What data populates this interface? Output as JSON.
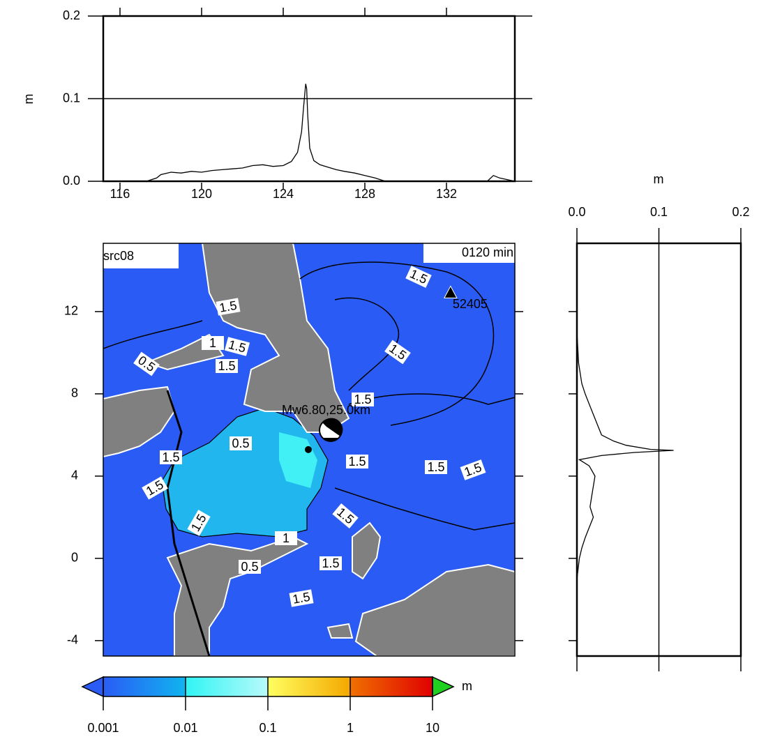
{
  "chart_data": [
    {
      "type": "line",
      "ylabel": "m",
      "color": "#000000",
      "grid": true,
      "x": [
        115.18,
        117.3,
        117.8,
        118.0,
        118.5,
        119.0,
        119.5,
        120.0,
        120.5,
        121.0,
        121.5,
        122.0,
        122.5,
        123.0,
        123.5,
        124.0,
        124.4,
        124.7,
        124.9,
        125.0,
        125.1,
        125.15,
        125.2,
        125.3,
        125.5,
        125.8,
        126.2,
        126.6,
        127.0,
        127.5,
        128.0,
        128.5,
        129.0,
        134.0,
        134.3,
        134.6,
        135.35
      ],
      "values": [
        0,
        0,
        0.004,
        0.008,
        0.011,
        0.01,
        0.012,
        0.011,
        0.013,
        0.014,
        0.015,
        0.016,
        0.019,
        0.02,
        0.018,
        0.019,
        0.024,
        0.035,
        0.06,
        0.09,
        0.118,
        0.112,
        0.08,
        0.04,
        0.025,
        0.02,
        0.017,
        0.014,
        0.012,
        0.01,
        0.007,
        0.004,
        0,
        0,
        0.007,
        0.004,
        0
      ],
      "xlim": [
        115.18,
        135.35
      ],
      "xticks": [
        116,
        120,
        124,
        128,
        132
      ],
      "ylim": [
        0,
        0.2
      ],
      "yticks": [
        {
          "value": 0,
          "label": "0.0"
        },
        0.1,
        0.2
      ]
    },
    {
      "type": "vline",
      "xlabel": "m",
      "color": "#000000",
      "grid": true,
      "lat": [
        15.32,
        11.0,
        9.5,
        8.5,
        8.0,
        7.5,
        7.0,
        6.5,
        6.0,
        5.7,
        5.5,
        5.3,
        5.25,
        5.15,
        5.0,
        4.8,
        4.5,
        4.0,
        3.5,
        3.0,
        2.5,
        2.0,
        1.5,
        1.0,
        0.5,
        0.0,
        -1.0,
        -4.75
      ],
      "values": [
        0,
        0,
        0.002,
        0.006,
        0.01,
        0.015,
        0.02,
        0.025,
        0.03,
        0.045,
        0.06,
        0.09,
        0.118,
        0.07,
        0.03,
        0.003,
        0.015,
        0.022,
        0.02,
        0.018,
        0.016,
        0.02,
        0.015,
        0.01,
        0.006,
        0.003,
        0,
        0
      ],
      "xlim": [
        0,
        0.2
      ],
      "xticks": [
        {
          "value": 0,
          "label": "0.0"
        },
        0.1,
        0.2
      ],
      "ylim": [
        -4.75,
        15.32
      ]
    },
    {
      "type": "map",
      "title": "src08",
      "time_label": "0120 min",
      "source_label": "Mw6.80,25.0km",
      "xlim": [
        115.18,
        135.35
      ],
      "ylim": [
        -4.75,
        15.32
      ],
      "yticks": [
        12,
        8,
        4,
        0,
        -4
      ],
      "epicenter": {
        "lon": 125.23,
        "lat": 5.29
      },
      "station": {
        "label": "52405",
        "lon": 132.2,
        "lat": 12.9
      },
      "contour_labels": [
        "1.5",
        "1.5",
        "0.5",
        "1",
        "1.5",
        "1.5",
        "1.5",
        "1.5",
        "0.5",
        "1.5",
        "1.5",
        "1.5",
        "1.5",
        "1.5",
        "1.5",
        "1.5",
        "1",
        "1.5",
        "0.5",
        "1.5"
      ]
    },
    {
      "type": "colorbar",
      "scale": "log",
      "unit": "m",
      "xlim": [
        0.001,
        10
      ],
      "xticks": [
        0.001,
        0.01,
        0.1,
        1,
        10
      ],
      "colors": [
        [
          "#2a5cf5",
          "#10b4f0"
        ],
        [
          "#30f4f4",
          "#b8fafa"
        ],
        [
          "#ffff60",
          "#f4a800"
        ],
        [
          "#f07000",
          "#e00000"
        ]
      ],
      "under_color": "#2a5cf5",
      "over_color": "#20d020"
    }
  ]
}
